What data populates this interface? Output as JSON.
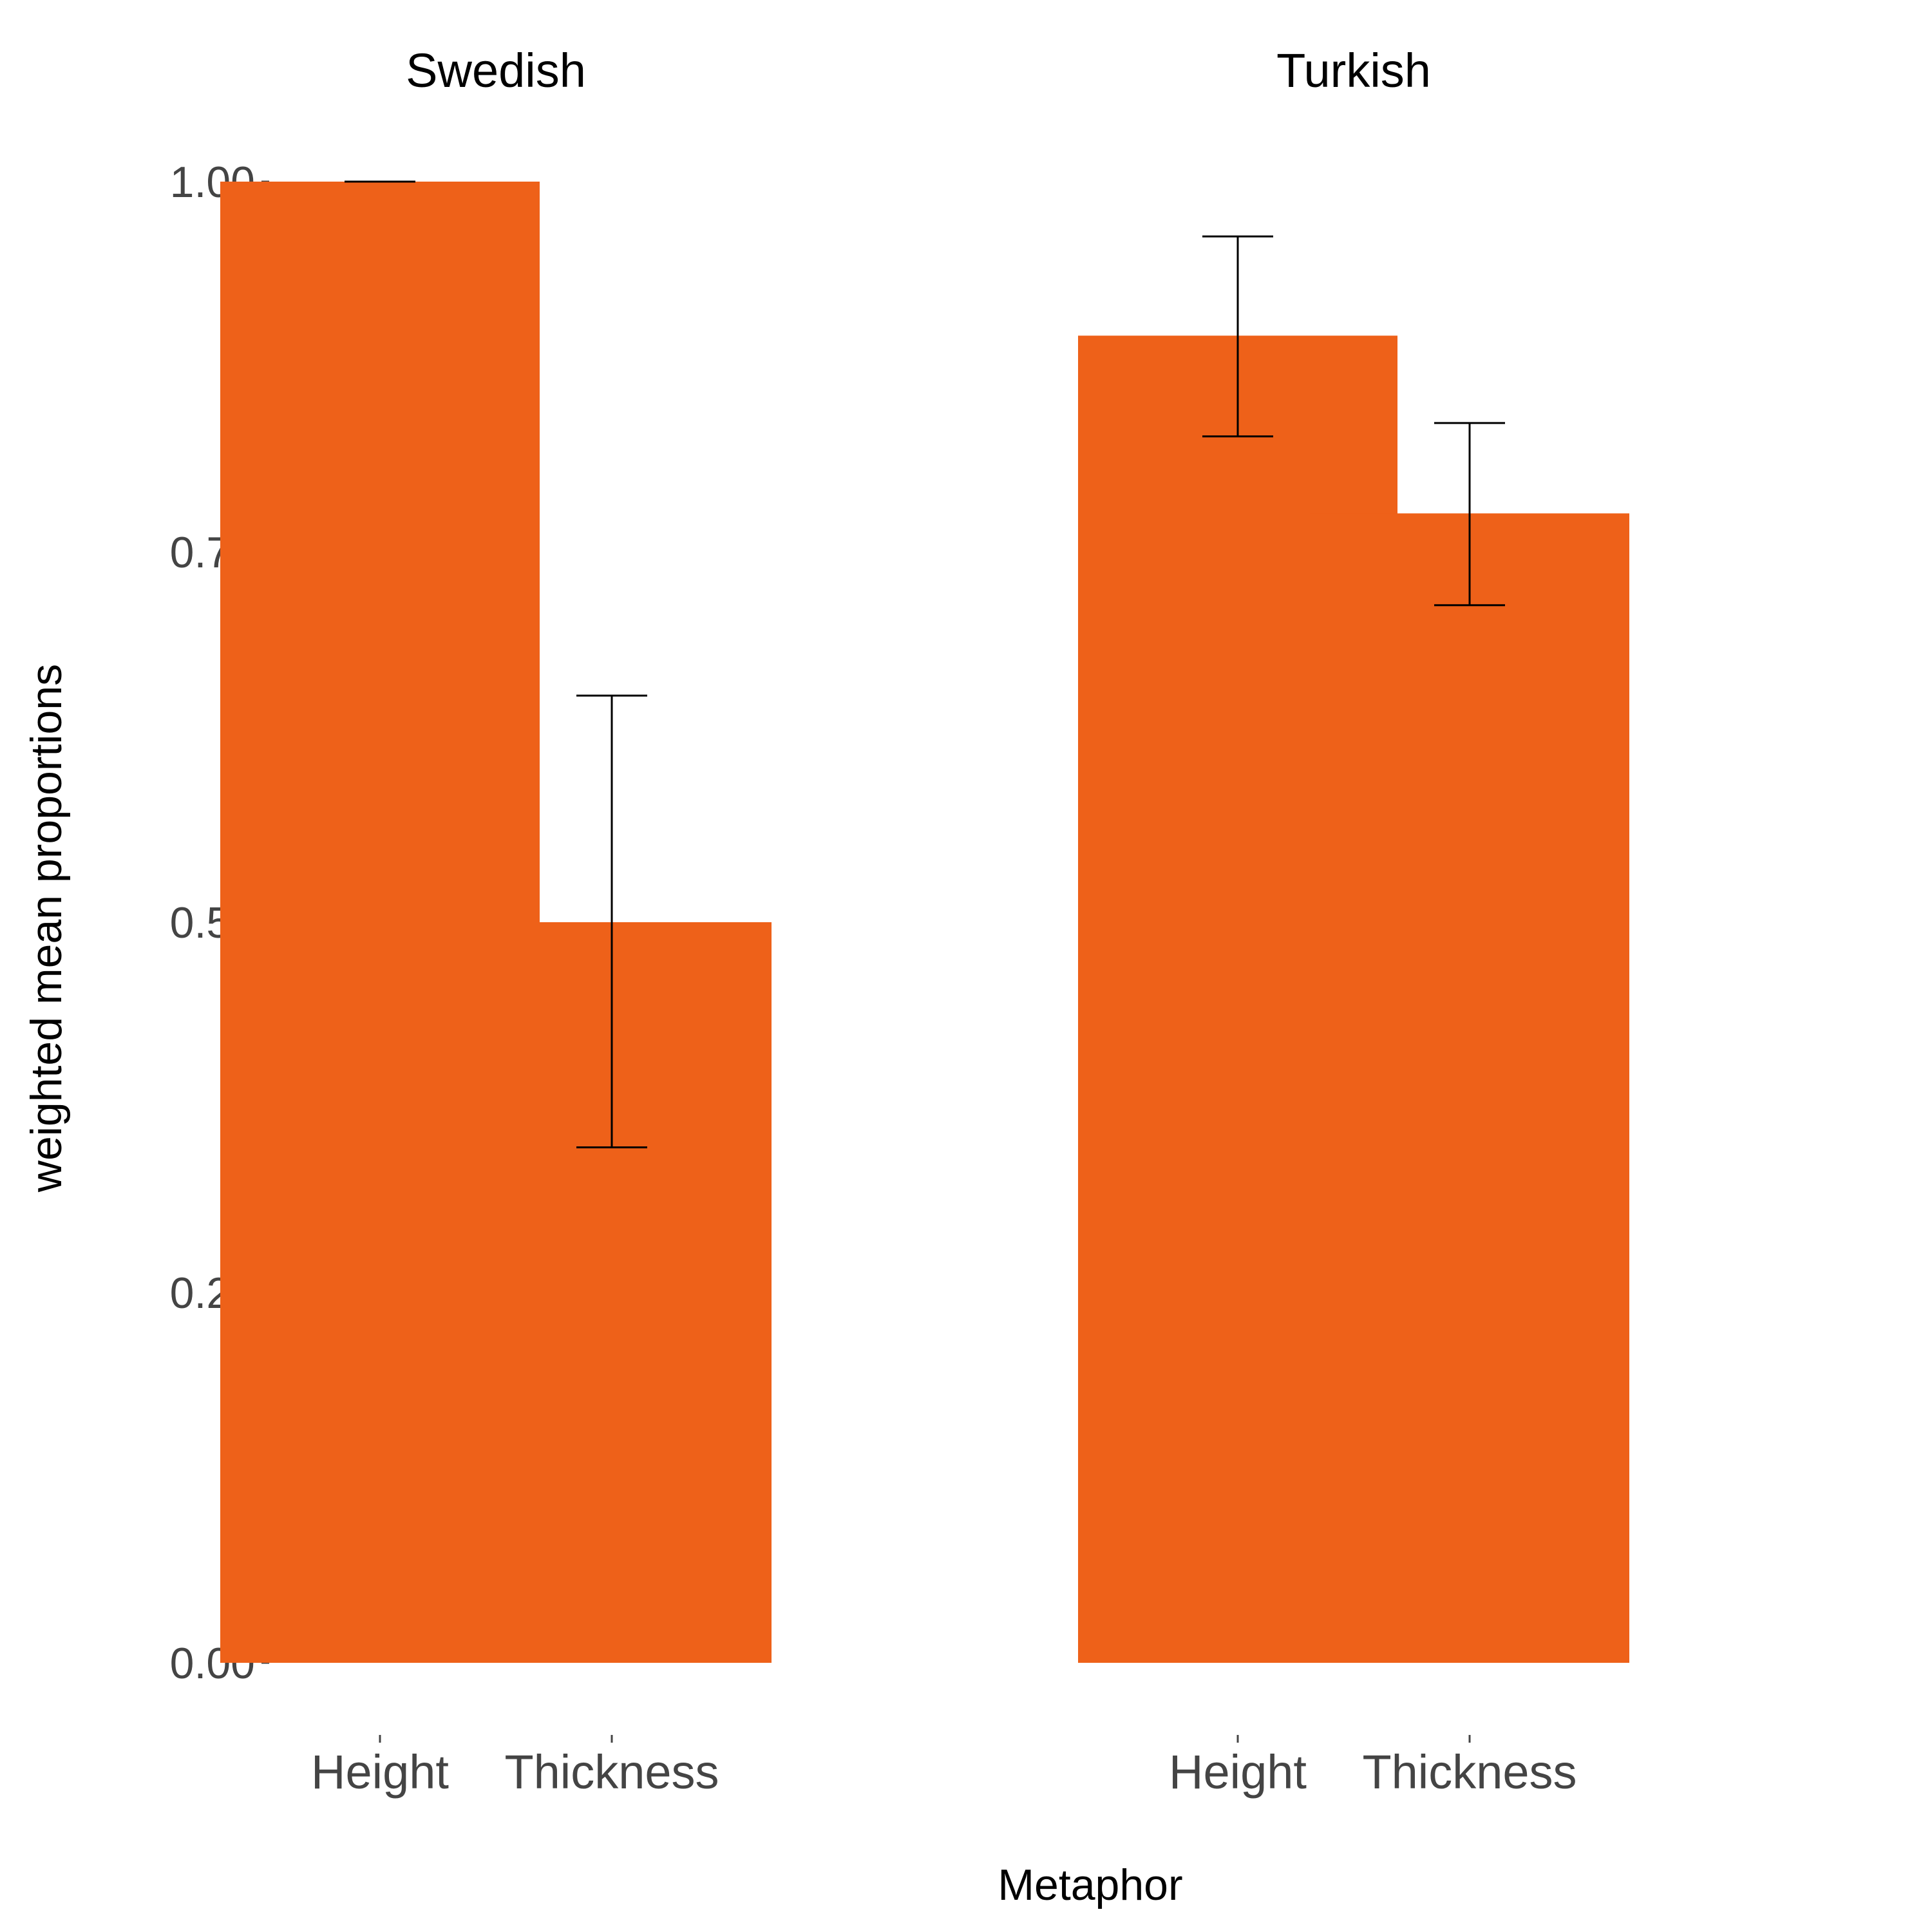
{
  "chart_data": {
    "type": "bar",
    "ylabel": "weighted mean proportions",
    "xlabel": "Metaphor",
    "ylim": [
      0,
      1.0
    ],
    "y_ticks": [
      "0.00",
      "0.25",
      "0.50",
      "0.75",
      "1.00"
    ],
    "y_tick_values": [
      0,
      0.25,
      0.5,
      0.75,
      1.0
    ],
    "grid": false,
    "bar_color": "#EE6119",
    "error_color": "#000000",
    "panels": [
      {
        "name": "Swedish",
        "categories": [
          "Height",
          "Thickness"
        ],
        "values": [
          1.0,
          0.5
        ],
        "error_low": [
          1.0,
          0.348
        ],
        "error_high": [
          1.0,
          0.653
        ]
      },
      {
        "name": "Turkish",
        "categories": [
          "Height",
          "Thickness"
        ],
        "values": [
          0.896,
          0.776
        ],
        "error_low": [
          0.828,
          0.714
        ],
        "error_high": [
          0.963,
          0.837
        ]
      }
    ]
  }
}
